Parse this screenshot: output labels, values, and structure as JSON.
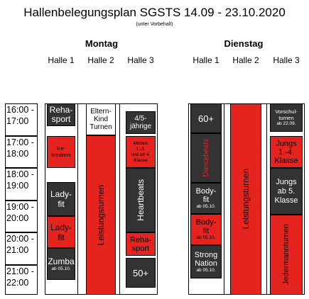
{
  "header": {
    "title": "Hallenbelegungsplan SGSTS 14.09 - 23.10.2020",
    "subtitle": "(unter Vorbehalt)"
  },
  "days": [
    {
      "name": "Montag",
      "halls": [
        "Halle 1",
        "Halle 2",
        "Halle 3"
      ]
    },
    {
      "name": "Dienstag",
      "halls": [
        "Halle 1",
        "Halle 2",
        "Halle 3"
      ]
    }
  ],
  "times": [
    {
      "line1": "16:00 -",
      "line2": "17:00"
    },
    {
      "line1": "17:00 -",
      "line2": "18:00"
    },
    {
      "line1": "18:00 -",
      "line2": "19:00"
    },
    {
      "line1": "19:00 -",
      "line2": "20:00"
    },
    {
      "line1": "20:00 -",
      "line2": "21:00"
    },
    {
      "line1": "21:00 -",
      "line2": "22:00"
    }
  ],
  "colors": {
    "dark": "#333333",
    "red": "#e52420",
    "white": "#ffffff"
  },
  "montag": {
    "h1": {
      "reha": "Reha-\nsport",
      "icebreakers": "Ice-\nbreakers",
      "lady_fit_dark": "Lady-\nfit",
      "lady_fit_red": "Lady-\nfit",
      "zumba": "Zumba",
      "zumba_sub": "ab 05.10."
    },
    "h2": {
      "eltern_kind": "Eltern-\nKind\nTurnen",
      "leistungsturnen": "Leistungsturnen"
    },
    "h3": {
      "vier_fuenf": "4/5-\njährige",
      "maedels": "Mädels\n1.-3.\nund ab 4.\nKlasse",
      "heartbeats": "Heartbeats",
      "reha": "Reha-\nsport",
      "fifty_plus": "50+"
    }
  },
  "dienstag": {
    "h1": {
      "sixty_plus": "60+",
      "dancebeats": "Dancebeats",
      "bodyfit_dark": "Body-\nfit",
      "bodyfit_dark_sub": "ab 05.10.",
      "bodyfit_red": "Body-\nfit",
      "bodyfit_red_sub": "ab 05.10.",
      "strong_nation": "Strong\nNation",
      "strong_nation_sub": "ab 05.10."
    },
    "h2": {
      "leistungsturnen": "Leistungsturnen"
    },
    "h3": {
      "vorschulturnen": "Vorschul-\nturnen",
      "vorschulturnen_sub": "ab 22.09.",
      "jungs_1_4": "Jungs\n1.-4.\nKlasse",
      "jungs_ab5": "Jungs\nab 5.\nKlasse",
      "jedermann": "Jedermannturnen"
    }
  }
}
